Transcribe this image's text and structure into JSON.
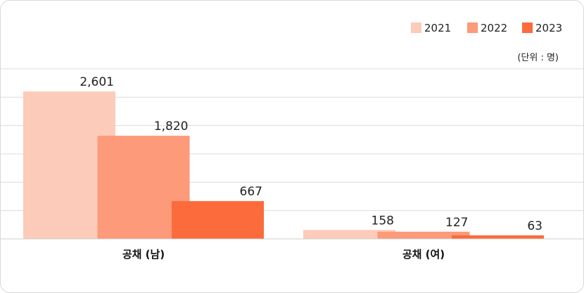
{
  "chart_data": {
    "type": "bar",
    "categories": [
      "공채 (남)",
      "공채 (여)"
    ],
    "series": [
      {
        "name": "2021",
        "values": [
          2601,
          158
        ],
        "color": "#fdcbb9"
      },
      {
        "name": "2022",
        "values": [
          1820,
          127
        ],
        "color": "#fc9a79"
      },
      {
        "name": "2023",
        "values": [
          667,
          63
        ],
        "color": "#fb6b3b"
      }
    ],
    "value_labels": [
      [
        "2,601",
        "158"
      ],
      [
        "1,820",
        "127"
      ],
      [
        "667",
        "63"
      ]
    ],
    "unit": "(단위 : 명)",
    "ylim": [
      0,
      3000
    ],
    "grid": true,
    "legend": "top-right",
    "title": "",
    "xlabel": "",
    "ylabel": ""
  }
}
